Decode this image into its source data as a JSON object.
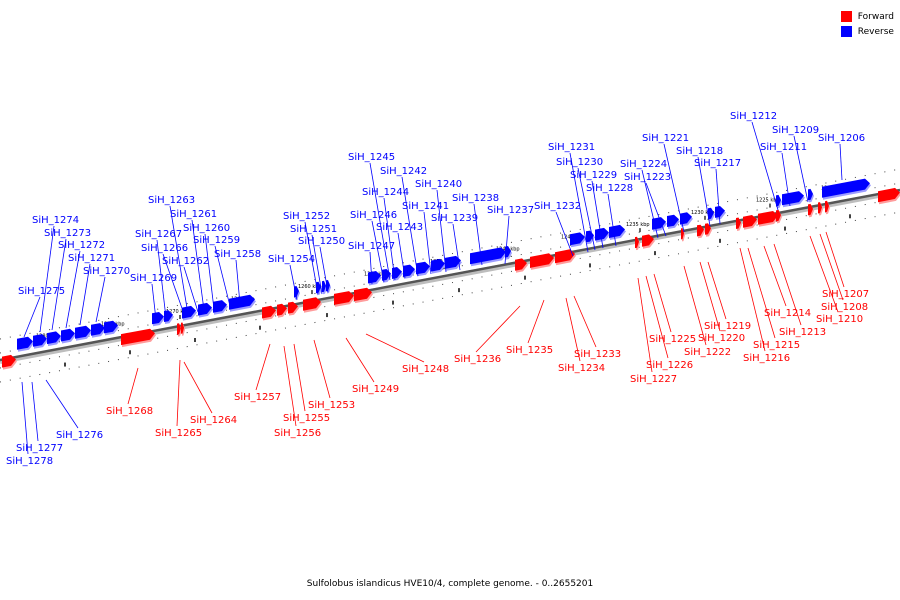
{
  "legend": {
    "forward_label": "Forward",
    "reverse_label": "Reverse",
    "forward_color": "#ff0000",
    "reverse_color": "#0000ff"
  },
  "footer": {
    "title": "Sulfolobus islandicus HVE10/4, complete genome. - 0..2655201"
  },
  "tick_labels": [
    "1280 kbp",
    "1275 kbp",
    "1270 kbp",
    "1265 kbp",
    "1260 kbp",
    "1255 kbp",
    "1250 kbp",
    "1245 kbp",
    "1240 kbp",
    "1235 kbp",
    "1230 kbp",
    "1225 kbp",
    "1220 kbp"
  ],
  "genes": {
    "reverse": [
      "SiH_1275",
      "SiH_1274",
      "SiH_1273",
      "SiH_1272",
      "SiH_1271",
      "SiH_1270",
      "SiH_1269",
      "SiH_1267",
      "SiH_1266",
      "SiH_1263",
      "SiH_1262",
      "SiH_1261",
      "SiH_1260",
      "SiH_1259",
      "SiH_1258",
      "SiH_1254",
      "SiH_1252",
      "SiH_1251",
      "SiH_1250",
      "SiH_1247",
      "SiH_1246",
      "SiH_1245",
      "SiH_1244",
      "SiH_1243",
      "SiH_1242",
      "SiH_1241",
      "SiH_1240",
      "SiH_1239",
      "SiH_1238",
      "SiH_1237",
      "SiH_1232",
      "SiH_1231",
      "SiH_1230",
      "SiH_1229",
      "SiH_1228",
      "SiH_1224",
      "SiH_1223",
      "SiH_1221",
      "SiH_1218",
      "SiH_1217",
      "SiH_1212",
      "SiH_1211",
      "SiH_1209",
      "SiH_1206",
      "SiH_1276",
      "SiH_1277",
      "SiH_1278"
    ],
    "forward": [
      "SiH_1268",
      "SiH_1265",
      "SiH_1264",
      "SiH_1257",
      "SiH_1256",
      "SiH_1255",
      "SiH_1253",
      "SiH_1249",
      "SiH_1248",
      "SiH_1236",
      "SiH_1235",
      "SiH_1234",
      "SiH_1233",
      "SiH_1227",
      "SiH_1226",
      "SiH_1225",
      "SiH_1222",
      "SiH_1220",
      "SiH_1219",
      "SiH_1216",
      "SiH_1215",
      "SiH_1214",
      "SiH_1213",
      "SiH_1210",
      "SiH_1208",
      "SiH_1207"
    ]
  }
}
